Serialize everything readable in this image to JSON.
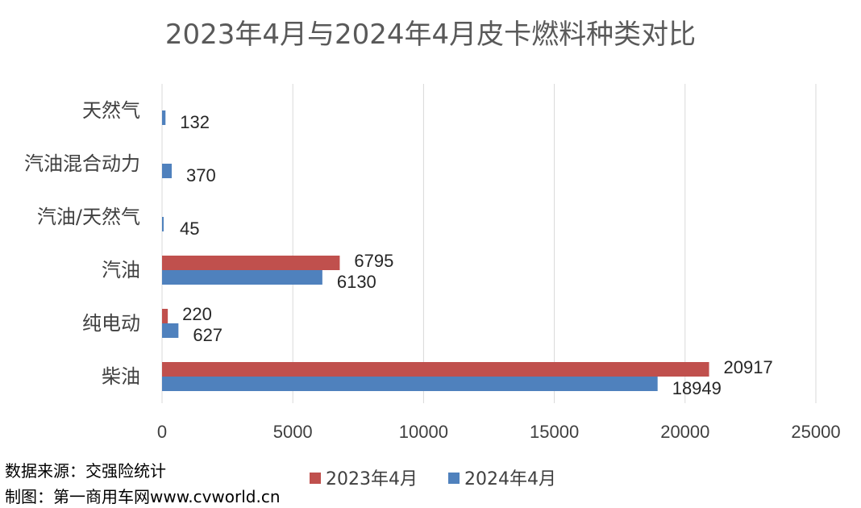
{
  "chart_data": {
    "type": "bar",
    "orientation": "horizontal",
    "title": "2023年4月与2024年4月皮卡燃料种类对比",
    "categories": [
      "天然气",
      "汽油混合动力",
      "汽油/天然气",
      "汽油",
      "纯电动",
      "柴油"
    ],
    "series": [
      {
        "name": "2023年4月",
        "color": "#c0504d",
        "values": [
          null,
          null,
          null,
          6795,
          220,
          20917
        ]
      },
      {
        "name": "2024年4月",
        "color": "#4f81bd",
        "values": [
          132,
          370,
          45,
          6130,
          627,
          18949
        ]
      }
    ],
    "xlim": [
      0,
      25000
    ],
    "xticks": [
      0,
      5000,
      10000,
      15000,
      20000,
      25000
    ],
    "grid": true,
    "legend": "bottom"
  },
  "notes": {
    "source": "数据来源：交强险统计",
    "maker": "制图：第一商用车网www.cvworld.cn"
  }
}
